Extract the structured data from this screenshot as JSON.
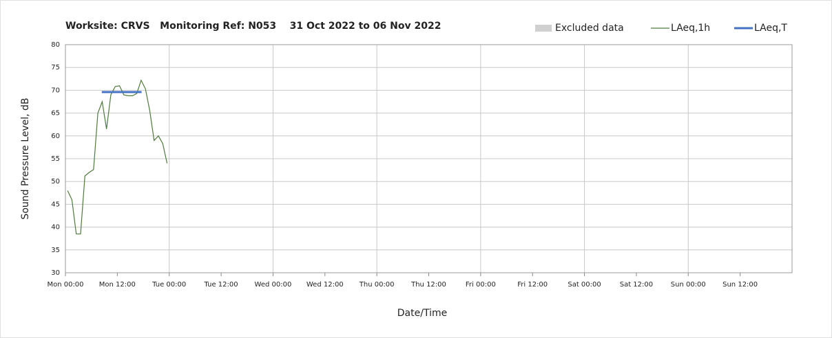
{
  "chart_data": {
    "type": "line",
    "title": "Worksite: CRVS   Monitoring Ref: N053    31 Oct 2022 to 06 Nov 2022",
    "x_label": "Date/Time",
    "y_label": "Sound Pressure Level, dB",
    "xlim": [
      0,
      168
    ],
    "xticks": [
      {
        "value": 0,
        "label": "Mon 00:00"
      },
      {
        "value": 12,
        "label": "Mon 12:00"
      },
      {
        "value": 24,
        "label": "Tue 00:00"
      },
      {
        "value": 36,
        "label": "Tue 12:00"
      },
      {
        "value": 48,
        "label": "Wed 00:00"
      },
      {
        "value": 60,
        "label": "Wed 12:00"
      },
      {
        "value": 72,
        "label": "Thu 00:00"
      },
      {
        "value": 84,
        "label": "Thu 12:00"
      },
      {
        "value": 96,
        "label": "Fri 00:00"
      },
      {
        "value": 108,
        "label": "Fri 12:00"
      },
      {
        "value": 120,
        "label": "Sat 00:00"
      },
      {
        "value": 132,
        "label": "Sat 12:00"
      },
      {
        "value": 144,
        "label": "Sun 00:00"
      },
      {
        "value": 156,
        "label": "Sun 12:00"
      }
    ],
    "ylim": [
      30,
      80
    ],
    "yticks": [
      30,
      35,
      40,
      45,
      50,
      55,
      60,
      65,
      70,
      75,
      80
    ],
    "grid": true,
    "legend": "top-right",
    "series": [
      {
        "name": "Excluded data",
        "color": "#d0d0d0",
        "kind": "area",
        "x": [],
        "values": []
      },
      {
        "name": "LAeq,1h",
        "color": "#4e7a3a",
        "kind": "thin",
        "x": [
          0.5,
          1.5,
          2.5,
          3.5,
          4.5,
          5.5,
          6.5,
          7.5,
          8.5,
          9.5,
          10.5,
          11.5,
          12.5,
          13.5,
          14.5,
          15.5,
          16.5,
          17.5,
          18.5,
          19.5,
          20.5,
          21.5,
          22.5,
          23.5
        ],
        "values": [
          48,
          46,
          38.5,
          38.5,
          51.2,
          52,
          52.6,
          65,
          67.5,
          61.5,
          69,
          70.8,
          71,
          69,
          68.8,
          68.8,
          69.3,
          72.2,
          70.3,
          65.5,
          59,
          60,
          58.3,
          54
        ]
      },
      {
        "name": "LAeq,T",
        "color": "#4472c4",
        "kind": "thick",
        "x": [
          8.4,
          17.6
        ],
        "values": [
          69.6,
          69.6
        ]
      }
    ]
  }
}
